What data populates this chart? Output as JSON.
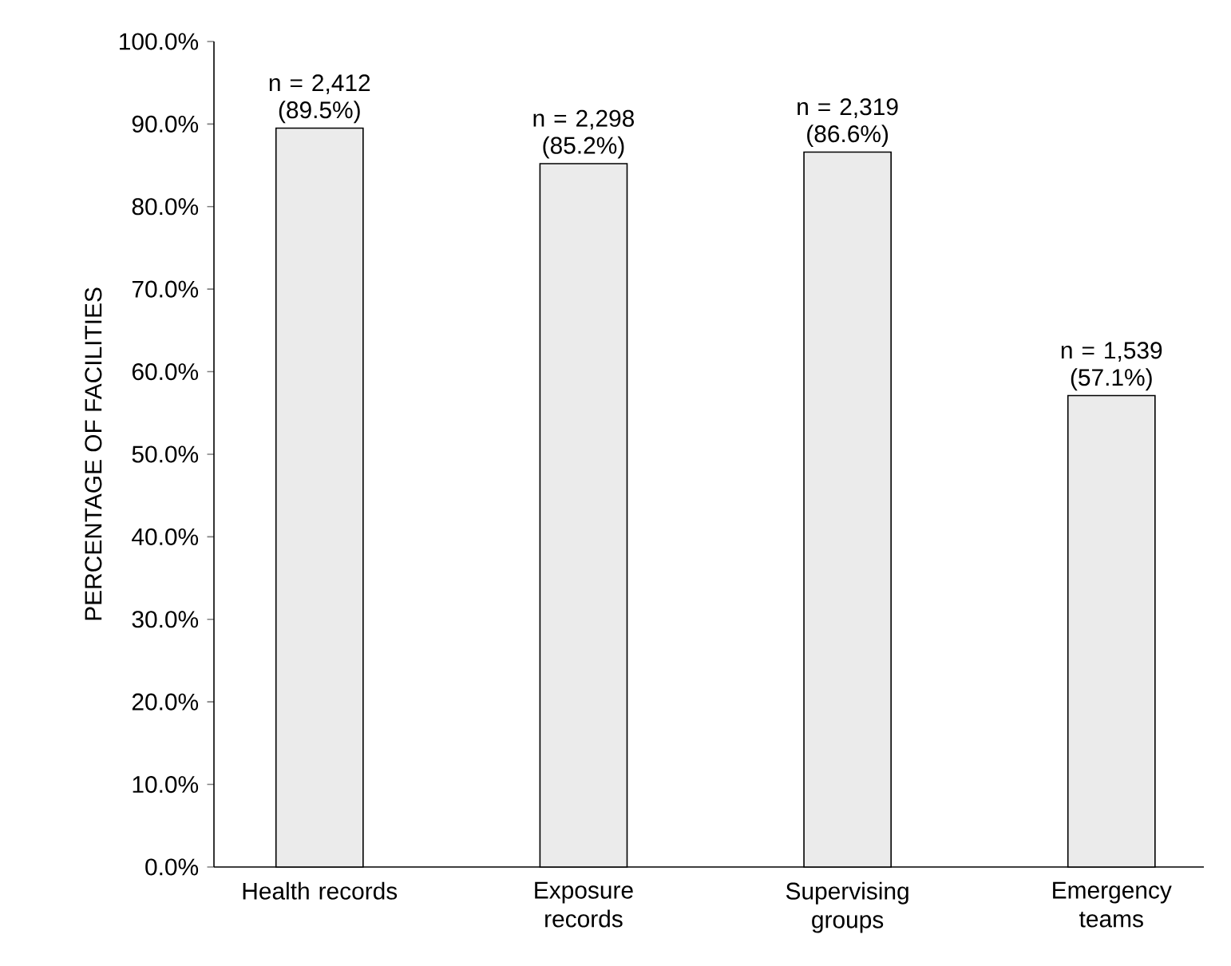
{
  "chart_data": {
    "type": "bar",
    "ylabel": "PERCENTAGE OF FACILITIES",
    "categories": [
      "Health records",
      "Exposure records",
      "Supervising groups",
      "Emergency teams"
    ],
    "values": [
      89.5,
      85.2,
      86.6,
      57.1
    ],
    "value_labels": [
      "n = 2,412 (89.5%)",
      "n = 2,298 (85.2%)",
      "n = 2,319 (86.6%)",
      "n = 1,539 (57.1%)"
    ],
    "color": "#ebebeb",
    "ylim": [
      0,
      100
    ],
    "yticks": [
      {
        "value": 0,
        "label": "0.0%"
      },
      {
        "value": 10,
        "label": "10.0%"
      },
      {
        "value": 20,
        "label": "20.0%"
      },
      {
        "value": 30,
        "label": "30.0%"
      },
      {
        "value": 40,
        "label": "40.0%"
      },
      {
        "value": 50,
        "label": "50.0%"
      },
      {
        "value": 60,
        "label": "60.0%"
      },
      {
        "value": 70,
        "label": "70.0%"
      },
      {
        "value": 80,
        "label": "80.0%"
      },
      {
        "value": 90,
        "label": "90.0%"
      },
      {
        "value": 100,
        "label": "100.0%"
      }
    ],
    "grid": false
  }
}
